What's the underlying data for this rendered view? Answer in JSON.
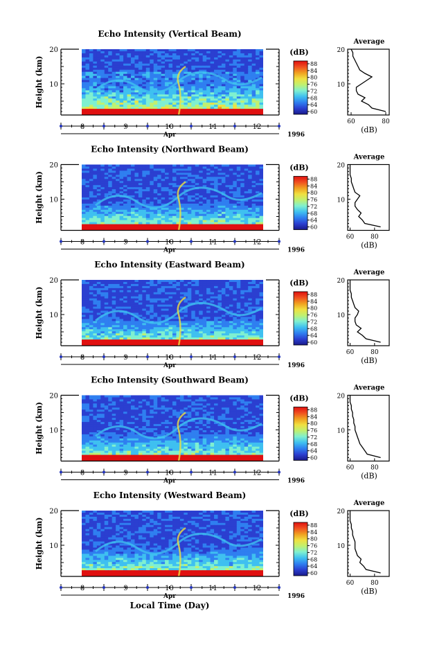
{
  "figure": {
    "xlabel": "Local Time (Day)",
    "colors": {
      "colormap": [
        "#1a1a8a",
        "#2b3fd0",
        "#2f7ff0",
        "#3fc0f0",
        "#7ff0d0",
        "#c0f070",
        "#f0e040",
        "#f0a020",
        "#f05020",
        "#e01010"
      ],
      "tick_marker": "#2233bb"
    }
  },
  "chart_data": [
    {
      "type": "heatmap",
      "title": "Echo Intensity (Vertical Beam)",
      "ylabel": "Height (km)",
      "yticks": [
        "20",
        "10"
      ],
      "ylim": [
        1,
        20
      ],
      "xlabel": "Apr",
      "xticks": [
        "8",
        "9",
        "10",
        "11",
        "12"
      ],
      "year": "1996",
      "colorbar": {
        "label": "(dB)",
        "ticks": [
          "88",
          "84",
          "80",
          "76",
          "72",
          "68",
          "64",
          "60"
        ]
      },
      "average": {
        "title": "Average",
        "xlabel": "(dB)",
        "xticks": [
          "60",
          "80"
        ],
        "yticks": [
          "20",
          "10"
        ],
        "xlim": [
          58,
          82
        ],
        "heights": [
          2,
          3,
          4,
          5,
          6,
          7,
          8,
          9,
          10,
          11,
          12,
          13,
          14,
          15,
          16,
          17,
          18,
          19,
          20
        ],
        "values": [
          80,
          72,
          70,
          66,
          68,
          64,
          63,
          63,
          66,
          69,
          72,
          68,
          65,
          64,
          63,
          62,
          61,
          61,
          60
        ]
      }
    },
    {
      "type": "heatmap",
      "title": "Echo Intensity (Northward Beam)",
      "ylabel": "Height (km)",
      "yticks": [
        "20",
        "10"
      ],
      "ylim": [
        1,
        20
      ],
      "xlabel": "Apr",
      "xticks": [
        "8",
        "9",
        "10",
        "11",
        "12"
      ],
      "year": "1996",
      "colorbar": {
        "label": "(dB)",
        "ticks": [
          "88",
          "84",
          "80",
          "76",
          "72",
          "68",
          "64",
          "60"
        ]
      },
      "average": {
        "title": "Average",
        "xlabel": "(dB)",
        "xticks": [
          "60",
          "80"
        ],
        "yticks": [
          "20",
          "10"
        ],
        "xlim": [
          58,
          92
        ],
        "heights": [
          2,
          3,
          4,
          5,
          6,
          7,
          8,
          9,
          10,
          11,
          12,
          13,
          14,
          15,
          16,
          17,
          18,
          19,
          20
        ],
        "values": [
          85,
          72,
          70,
          67,
          69,
          66,
          64,
          64,
          66,
          68,
          64,
          63,
          62,
          61,
          61,
          60,
          60,
          60,
          60
        ]
      }
    },
    {
      "type": "heatmap",
      "title": "Echo Intensity (Eastward Beam)",
      "ylabel": "Height (km)",
      "yticks": [
        "20",
        "10"
      ],
      "ylim": [
        1,
        20
      ],
      "xlabel": "Apr",
      "xticks": [
        "8",
        "9",
        "10",
        "11",
        "12"
      ],
      "year": "1996",
      "colorbar": {
        "label": "(dB)",
        "ticks": [
          "88",
          "84",
          "80",
          "76",
          "72",
          "68",
          "64",
          "60"
        ]
      },
      "average": {
        "title": "Average",
        "xlabel": "(dB)",
        "xticks": [
          "60",
          "80"
        ],
        "yticks": [
          "20",
          "10"
        ],
        "xlim": [
          58,
          92
        ],
        "heights": [
          2,
          3,
          4,
          5,
          6,
          7,
          8,
          9,
          10,
          11,
          12,
          13,
          14,
          15,
          16,
          17,
          18,
          19,
          20
        ],
        "values": [
          85,
          73,
          70,
          66,
          69,
          65,
          64,
          64,
          66,
          67,
          64,
          63,
          62,
          61,
          61,
          60,
          60,
          60,
          60
        ]
      }
    },
    {
      "type": "heatmap",
      "title": "Echo Intensity (Southward Beam)",
      "ylabel": "Height (km)",
      "yticks": [
        "20",
        "10"
      ],
      "ylim": [
        1,
        20
      ],
      "xlabel": "Apr",
      "xticks": [
        "8",
        "9",
        "10",
        "11",
        "12"
      ],
      "year": "1996",
      "colorbar": {
        "label": "(dB)",
        "ticks": [
          "88",
          "84",
          "80",
          "76",
          "72",
          "68",
          "64",
          "60"
        ]
      },
      "average": {
        "title": "Average",
        "xlabel": "(dB)",
        "xticks": [
          "60",
          "80"
        ],
        "yticks": [
          "20",
          "10"
        ],
        "xlim": [
          58,
          92
        ],
        "heights": [
          2,
          3,
          4,
          5,
          6,
          7,
          8,
          9,
          10,
          11,
          12,
          13,
          14,
          15,
          16,
          17,
          18,
          19,
          20
        ],
        "values": [
          85,
          74,
          72,
          70,
          68,
          67,
          66,
          65,
          64,
          64,
          63,
          63,
          62,
          62,
          61,
          61,
          60,
          60,
          60
        ]
      }
    },
    {
      "type": "heatmap",
      "title": "Echo Intensity (Westward Beam)",
      "ylabel": "Height (km)",
      "yticks": [
        "20",
        "10"
      ],
      "ylim": [
        1,
        20
      ],
      "xlabel": "Apr",
      "xticks": [
        "8",
        "9",
        "10",
        "11",
        "12"
      ],
      "year": "1996",
      "colorbar": {
        "label": "(dB)",
        "ticks": [
          "88",
          "84",
          "80",
          "76",
          "72",
          "68",
          "64",
          "60"
        ]
      },
      "average": {
        "title": "Average",
        "xlabel": "(dB)",
        "xticks": [
          "60",
          "80"
        ],
        "yticks": [
          "20",
          "10"
        ],
        "xlim": [
          58,
          92
        ],
        "heights": [
          2,
          3,
          4,
          5,
          6,
          7,
          8,
          9,
          10,
          11,
          12,
          13,
          14,
          15,
          16,
          17,
          18,
          19,
          20
        ],
        "values": [
          85,
          73,
          71,
          68,
          69,
          66,
          65,
          64,
          64,
          64,
          63,
          62,
          62,
          61,
          61,
          60,
          60,
          60,
          60
        ]
      }
    }
  ]
}
